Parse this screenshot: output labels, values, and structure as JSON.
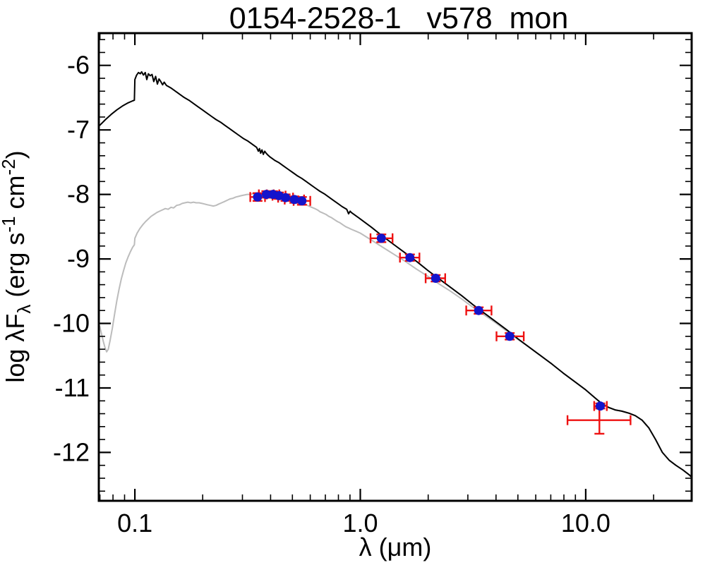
{
  "chart_data": {
    "type": "line",
    "title": "0154-2528-1   v578_mon",
    "xlabel": "λ (μm)",
    "ylabel": "log λFλ (erg s-1 cm-2)",
    "ylabel_parts": [
      {
        "t": "log λF"
      },
      {
        "t": "λ",
        "pos": "sub"
      },
      {
        "t": " (erg s"
      },
      {
        "t": "-1",
        "pos": "sup"
      },
      {
        "t": " cm"
      },
      {
        "t": "-2",
        "pos": "sup"
      },
      {
        "t": ")"
      }
    ],
    "x_scale": "log",
    "xlim": [
      0.0692,
      29.5
    ],
    "ylim": [
      -12.75,
      -5.5
    ],
    "grid": false,
    "legend": "none",
    "x_axis": {
      "major_ticks": [
        {
          "value": 0.1,
          "label": "0.1"
        },
        {
          "value": 1.0,
          "label": "1.0"
        },
        {
          "value": 10.0,
          "label": "10.0"
        }
      ]
    },
    "y_axis": {
      "major_ticks": [
        {
          "value": -6,
          "label": "-6"
        },
        {
          "value": -7,
          "label": "-7"
        },
        {
          "value": -8,
          "label": "-8"
        },
        {
          "value": -9,
          "label": "-9"
        },
        {
          "value": -10,
          "label": "-10"
        },
        {
          "value": -11,
          "label": "-11"
        },
        {
          "value": -12,
          "label": "-12"
        }
      ],
      "minor_step": 0.2
    },
    "colors": {
      "stellar_model": "#000000",
      "reddened_model": "#bcbcbc",
      "marker": "#1414cc",
      "errorbar": "#ee1111"
    },
    "series": [
      {
        "name": "reddened-model",
        "color": "#bcbcbc",
        "points": [
          [
            -1.156,
            -10.04
          ],
          [
            -1.148,
            -10.16
          ],
          [
            -1.14,
            -10.28
          ],
          [
            -1.132,
            -10.38
          ],
          [
            -1.125,
            -10.44
          ],
          [
            -1.118,
            -10.4
          ],
          [
            -1.11,
            -10.27
          ],
          [
            -1.1,
            -10.08
          ],
          [
            -1.09,
            -9.86
          ],
          [
            -1.08,
            -9.65
          ],
          [
            -1.07,
            -9.47
          ],
          [
            -1.06,
            -9.31
          ],
          [
            -1.05,
            -9.18
          ],
          [
            -1.04,
            -9.06
          ],
          [
            -1.03,
            -8.97
          ],
          [
            -1.02,
            -8.89
          ],
          [
            -1.01,
            -8.82
          ],
          [
            -1.002,
            -8.78
          ],
          [
            -1.0,
            -8.68
          ],
          [
            -0.99,
            -8.6
          ],
          [
            -0.978,
            -8.53
          ],
          [
            -0.965,
            -8.47
          ],
          [
            -0.952,
            -8.42
          ],
          [
            -0.94,
            -8.38
          ],
          [
            -0.928,
            -8.34
          ],
          [
            -0.915,
            -8.31
          ],
          [
            -0.902,
            -8.28
          ],
          [
            -0.89,
            -8.26
          ],
          [
            -0.878,
            -8.24
          ],
          [
            -0.865,
            -8.22
          ],
          [
            -0.852,
            -8.23
          ],
          [
            -0.84,
            -8.2
          ],
          [
            -0.828,
            -8.21
          ],
          [
            -0.815,
            -8.17
          ],
          [
            -0.802,
            -8.16
          ],
          [
            -0.79,
            -8.14
          ],
          [
            -0.778,
            -8.13
          ],
          [
            -0.765,
            -8.12
          ],
          [
            -0.752,
            -8.13
          ],
          [
            -0.74,
            -8.12
          ],
          [
            -0.728,
            -8.13
          ],
          [
            -0.715,
            -8.13
          ],
          [
            -0.702,
            -8.14
          ],
          [
            -0.69,
            -8.15
          ],
          [
            -0.678,
            -8.16
          ],
          [
            -0.665,
            -8.17
          ],
          [
            -0.652,
            -8.18
          ],
          [
            -0.64,
            -8.17
          ],
          [
            -0.628,
            -8.15
          ],
          [
            -0.615,
            -8.13
          ],
          [
            -0.602,
            -8.11
          ],
          [
            -0.59,
            -8.09
          ],
          [
            -0.578,
            -8.07
          ],
          [
            -0.565,
            -8.06
          ],
          [
            -0.552,
            -8.04
          ],
          [
            -0.54,
            -8.03
          ],
          [
            -0.528,
            -8.02
          ],
          [
            -0.515,
            -8.01
          ],
          [
            -0.502,
            -8.0
          ],
          [
            -0.49,
            -8.0
          ],
          [
            -0.478,
            -7.99
          ],
          [
            -0.465,
            -7.99
          ],
          [
            -0.452,
            -7.98
          ],
          [
            -0.44,
            -7.98
          ],
          [
            -0.428,
            -7.98
          ],
          [
            -0.415,
            -7.99
          ],
          [
            -0.402,
            -7.99
          ],
          [
            -0.39,
            -8.0
          ],
          [
            -0.378,
            -8.0
          ],
          [
            -0.365,
            -8.01
          ],
          [
            -0.352,
            -8.02
          ],
          [
            -0.34,
            -8.03
          ],
          [
            -0.328,
            -8.04
          ],
          [
            -0.315,
            -8.06
          ],
          [
            -0.302,
            -8.07
          ],
          [
            -0.29,
            -8.09
          ],
          [
            -0.278,
            -8.1
          ],
          [
            -0.265,
            -8.12
          ],
          [
            -0.252,
            -8.14
          ],
          [
            -0.24,
            -8.16
          ],
          [
            -0.228,
            -8.18
          ],
          [
            -0.215,
            -8.2
          ],
          [
            -0.202,
            -8.22
          ],
          [
            -0.19,
            -8.24
          ],
          [
            -0.178,
            -8.27
          ],
          [
            -0.165,
            -8.29
          ],
          [
            -0.152,
            -8.31
          ],
          [
            -0.14,
            -8.34
          ],
          [
            -0.128,
            -8.36
          ],
          [
            -0.115,
            -8.39
          ],
          [
            -0.102,
            -8.42
          ],
          [
            -0.09,
            -8.44
          ],
          [
            -0.078,
            -8.47
          ],
          [
            -0.065,
            -8.5
          ],
          [
            -0.052,
            -8.52
          ],
          [
            -0.04,
            -8.54
          ],
          [
            -0.02,
            -8.57
          ],
          [
            0.0,
            -8.6
          ],
          [
            0.05,
            -8.71
          ],
          [
            0.1,
            -8.82
          ],
          [
            0.15,
            -8.93
          ],
          [
            0.2,
            -9.04
          ],
          [
            0.25,
            -9.16
          ],
          [
            0.3,
            -9.27
          ],
          [
            0.35,
            -9.39
          ],
          [
            0.4,
            -9.5
          ],
          [
            0.45,
            -9.62
          ],
          [
            0.5,
            -9.75
          ],
          [
            0.55,
            -9.87
          ],
          [
            0.6,
            -9.99
          ],
          [
            0.65,
            -10.12
          ],
          [
            0.7,
            -10.25
          ],
          [
            0.75,
            -10.37
          ],
          [
            0.8,
            -10.5
          ],
          [
            0.85,
            -10.63
          ],
          [
            0.9,
            -10.77
          ],
          [
            0.95,
            -10.9
          ],
          [
            1.0,
            -11.03
          ],
          [
            1.04,
            -11.15
          ],
          [
            1.07,
            -11.24
          ],
          [
            1.1,
            -11.3
          ],
          [
            1.13,
            -11.34
          ],
          [
            1.16,
            -11.36
          ],
          [
            1.19,
            -11.39
          ],
          [
            1.22,
            -11.43
          ],
          [
            1.25,
            -11.5
          ],
          [
            1.28,
            -11.62
          ],
          [
            1.31,
            -11.8
          ],
          [
            1.34,
            -12.0
          ],
          [
            1.37,
            -12.12
          ],
          [
            1.4,
            -12.2
          ],
          [
            1.43,
            -12.27
          ],
          [
            1.46,
            -12.35
          ],
          [
            1.468,
            -12.38
          ]
        ]
      },
      {
        "name": "stellar-model",
        "color": "#000000",
        "points": [
          [
            -1.156,
            -6.93
          ],
          [
            -1.13,
            -6.84
          ],
          [
            -1.105,
            -6.76
          ],
          [
            -1.08,
            -6.69
          ],
          [
            -1.055,
            -6.63
          ],
          [
            -1.03,
            -6.58
          ],
          [
            -1.01,
            -6.55
          ],
          [
            -1.002,
            -6.54
          ],
          [
            -1.0,
            -6.22
          ],
          [
            -0.992,
            -6.15
          ],
          [
            -0.984,
            -6.11
          ],
          [
            -0.976,
            -6.13
          ],
          [
            -0.97,
            -6.1
          ],
          [
            -0.962,
            -6.15
          ],
          [
            -0.954,
            -6.11
          ],
          [
            -0.947,
            -6.22
          ],
          [
            -0.94,
            -6.13
          ],
          [
            -0.932,
            -6.16
          ],
          [
            -0.924,
            -6.14
          ],
          [
            -0.916,
            -6.25
          ],
          [
            -0.908,
            -6.17
          ],
          [
            -0.9,
            -6.29
          ],
          [
            -0.893,
            -6.21
          ],
          [
            -0.885,
            -6.25
          ],
          [
            -0.877,
            -6.3
          ],
          [
            -0.87,
            -6.26
          ],
          [
            -0.86,
            -6.31
          ],
          [
            -0.85,
            -6.33
          ],
          [
            -0.84,
            -6.35
          ],
          [
            -0.82,
            -6.4
          ],
          [
            -0.8,
            -6.45
          ],
          [
            -0.78,
            -6.5
          ],
          [
            -0.76,
            -6.54
          ],
          [
            -0.74,
            -6.59
          ],
          [
            -0.72,
            -6.64
          ],
          [
            -0.7,
            -6.69
          ],
          [
            -0.68,
            -6.74
          ],
          [
            -0.66,
            -6.79
          ],
          [
            -0.64,
            -6.84
          ],
          [
            -0.62,
            -6.88
          ],
          [
            -0.6,
            -6.93
          ],
          [
            -0.58,
            -6.98
          ],
          [
            -0.56,
            -7.03
          ],
          [
            -0.54,
            -7.08
          ],
          [
            -0.52,
            -7.13
          ],
          [
            -0.5,
            -7.17
          ],
          [
            -0.48,
            -7.22
          ],
          [
            -0.46,
            -7.27
          ],
          [
            -0.452,
            -7.33
          ],
          [
            -0.447,
            -7.29
          ],
          [
            -0.442,
            -7.36
          ],
          [
            -0.436,
            -7.31
          ],
          [
            -0.43,
            -7.38
          ],
          [
            -0.424,
            -7.33
          ],
          [
            -0.418,
            -7.36
          ],
          [
            -0.41,
            -7.39
          ],
          [
            -0.4,
            -7.42
          ],
          [
            -0.38,
            -7.47
          ],
          [
            -0.36,
            -7.51
          ],
          [
            -0.34,
            -7.56
          ],
          [
            -0.32,
            -7.61
          ],
          [
            -0.3,
            -7.66
          ],
          [
            -0.28,
            -7.71
          ],
          [
            -0.26,
            -7.75
          ],
          [
            -0.24,
            -7.8
          ],
          [
            -0.22,
            -7.85
          ],
          [
            -0.2,
            -7.9
          ],
          [
            -0.18,
            -7.95
          ],
          [
            -0.16,
            -7.99
          ],
          [
            -0.14,
            -8.04
          ],
          [
            -0.12,
            -8.09
          ],
          [
            -0.1,
            -8.14
          ],
          [
            -0.08,
            -8.19
          ],
          [
            -0.06,
            -8.23
          ],
          [
            -0.052,
            -8.3
          ],
          [
            -0.045,
            -8.26
          ],
          [
            -0.04,
            -8.28
          ],
          [
            -0.02,
            -8.33
          ],
          [
            0.0,
            -8.38
          ],
          [
            0.05,
            -8.51
          ],
          [
            0.1,
            -8.65
          ],
          [
            0.15,
            -8.78
          ],
          [
            0.2,
            -8.91
          ],
          [
            0.25,
            -9.04
          ],
          [
            0.3,
            -9.18
          ],
          [
            0.35,
            -9.31
          ],
          [
            0.4,
            -9.44
          ],
          [
            0.45,
            -9.57
          ],
          [
            0.5,
            -9.71
          ],
          [
            0.55,
            -9.84
          ],
          [
            0.6,
            -9.97
          ],
          [
            0.65,
            -10.1
          ],
          [
            0.7,
            -10.24
          ],
          [
            0.75,
            -10.37
          ],
          [
            0.8,
            -10.5
          ],
          [
            0.85,
            -10.63
          ],
          [
            0.9,
            -10.77
          ],
          [
            0.95,
            -10.9
          ],
          [
            1.0,
            -11.03
          ],
          [
            1.04,
            -11.15
          ],
          [
            1.07,
            -11.24
          ],
          [
            1.1,
            -11.3
          ],
          [
            1.13,
            -11.34
          ],
          [
            1.16,
            -11.36
          ],
          [
            1.19,
            -11.39
          ],
          [
            1.22,
            -11.43
          ],
          [
            1.25,
            -11.5
          ],
          [
            1.28,
            -11.62
          ],
          [
            1.31,
            -11.8
          ],
          [
            1.34,
            -12.0
          ],
          [
            1.37,
            -12.12
          ],
          [
            1.4,
            -12.2
          ],
          [
            1.43,
            -12.27
          ],
          [
            1.46,
            -12.35
          ],
          [
            1.468,
            -12.38
          ]
        ]
      }
    ],
    "photometry": [
      {
        "lam": 0.35,
        "val": -8.04,
        "xlo": 0.325,
        "xhi": 0.378,
        "yerr": 0.06
      },
      {
        "lam": 0.383,
        "val": -8.0,
        "xlo": 0.355,
        "xhi": 0.413,
        "yerr": 0.05
      },
      {
        "lam": 0.41,
        "val": -8.0,
        "xlo": 0.385,
        "xhi": 0.437,
        "yerr": 0.05
      },
      {
        "lam": 0.436,
        "val": -8.02,
        "xlo": 0.408,
        "xhi": 0.466,
        "yerr": 0.05
      },
      {
        "lam": 0.466,
        "val": -8.05,
        "xlo": 0.432,
        "xhi": 0.503,
        "yerr": 0.05
      },
      {
        "lam": 0.51,
        "val": -8.08,
        "xlo": 0.462,
        "xhi": 0.563,
        "yerr": 0.05
      },
      {
        "lam": 0.551,
        "val": -8.1,
        "xlo": 0.506,
        "xhi": 0.6,
        "yerr": 0.06
      },
      {
        "lam": 1.24,
        "val": -8.68,
        "xlo": 1.11,
        "xhi": 1.39,
        "yerr": 0.06
      },
      {
        "lam": 1.66,
        "val": -8.98,
        "xlo": 1.5,
        "xhi": 1.83,
        "yerr": 0.05
      },
      {
        "lam": 2.16,
        "val": -9.3,
        "xlo": 1.95,
        "xhi": 2.38,
        "yerr": 0.05
      },
      {
        "lam": 3.35,
        "val": -9.8,
        "xlo": 2.95,
        "xhi": 3.82,
        "yerr": 0.05
      },
      {
        "lam": 4.6,
        "val": -10.2,
        "xlo": 4.02,
        "xhi": 5.31,
        "yerr": 0.05
      },
      {
        "lam": 11.6,
        "val": -11.28,
        "xlo": 10.9,
        "xhi": 12.4,
        "yerr": 0.04
      }
    ],
    "extra_errorbar": {
      "lam": 11.5,
      "val": -11.5,
      "xlo": 8.3,
      "xhi": 15.8,
      "yerr": 0.21
    }
  }
}
